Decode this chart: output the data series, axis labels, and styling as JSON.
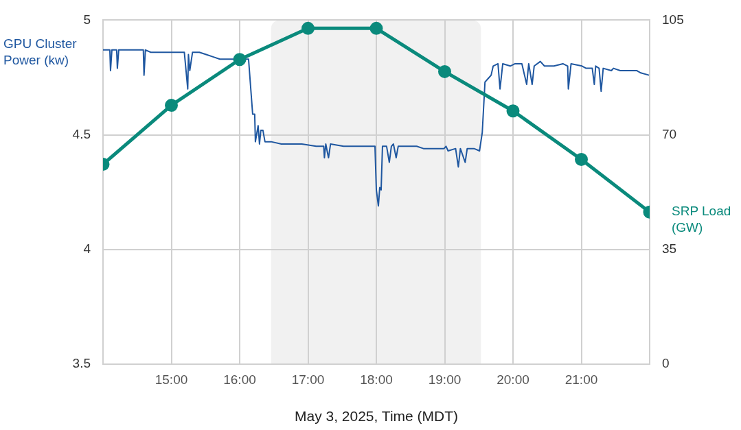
{
  "chart_data": {
    "type": "line",
    "xlabel": "May 3, 2025, Time (MDT)",
    "ylabel": "GPU Cluster Power (kw)",
    "y2label": "SRP Load (GW)",
    "xlim": [
      14,
      22
    ],
    "xticks": [
      {
        "value": 15,
        "label": "15:00"
      },
      {
        "value": 16,
        "label": "16:00"
      },
      {
        "value": 17,
        "label": "17:00"
      },
      {
        "value": 18,
        "label": "18:00"
      },
      {
        "value": 19,
        "label": "19:00"
      },
      {
        "value": 20,
        "label": "20:00"
      },
      {
        "value": 21,
        "label": "21:00"
      }
    ],
    "ylim": [
      3.5,
      5
    ],
    "yticks": [
      3.5,
      4,
      4.5,
      5
    ],
    "y2lim": [
      0,
      105
    ],
    "y2ticks": [
      0,
      35,
      70,
      105
    ],
    "grid": true,
    "bands": [
      {
        "axis": "x",
        "from": 16.46,
        "to": 19.53,
        "color": "#f1f1f1"
      }
    ],
    "series": [
      {
        "color": "#1f57a0",
        "marker": "none",
        "x": [
          14.0,
          14.05,
          14.1,
          14.11,
          14.13,
          14.2,
          14.21,
          14.23,
          14.26,
          14.4,
          14.5,
          14.59,
          14.6,
          14.62,
          14.7,
          14.76,
          14.9,
          14.95,
          15.01,
          15.06,
          15.16,
          15.19,
          15.24,
          15.25,
          15.27,
          15.31,
          15.41,
          15.51,
          15.61,
          15.71,
          15.91,
          16.13,
          16.19,
          16.22,
          16.23,
          16.27,
          16.29,
          16.31,
          16.34,
          16.37,
          16.46,
          16.61,
          16.71,
          16.91,
          17.12,
          17.23,
          17.24,
          17.26,
          17.3,
          17.33,
          17.52,
          17.92,
          17.98,
          18.0,
          18.03,
          18.05,
          18.07,
          18.09,
          18.12,
          18.15,
          18.19,
          18.22,
          18.25,
          18.29,
          18.32,
          18.59,
          18.69,
          18.82,
          18.99,
          19.02,
          19.05,
          19.16,
          19.2,
          19.23,
          19.3,
          19.33,
          19.43,
          19.51,
          19.55,
          19.59,
          19.65,
          19.68,
          19.71,
          19.78,
          19.81,
          19.85,
          19.96,
          20.03,
          20.13,
          20.2,
          20.23,
          20.28,
          20.31,
          20.4,
          20.46,
          20.6,
          20.73,
          20.8,
          20.81,
          20.85,
          21.01,
          21.07,
          21.16,
          21.19,
          21.21,
          21.26,
          21.29,
          21.32,
          21.44,
          21.47,
          21.57,
          21.67,
          21.81,
          21.87,
          21.99
        ],
        "values": [
          4.87,
          4.87,
          4.87,
          4.78,
          4.87,
          4.87,
          4.79,
          4.87,
          4.87,
          4.87,
          4.87,
          4.87,
          4.76,
          4.87,
          4.86,
          4.86,
          4.86,
          4.86,
          4.86,
          4.86,
          4.86,
          4.86,
          4.7,
          4.85,
          4.78,
          4.86,
          4.86,
          4.85,
          4.84,
          4.83,
          4.83,
          4.83,
          4.59,
          4.59,
          4.47,
          4.54,
          4.46,
          4.52,
          4.52,
          4.47,
          4.47,
          4.46,
          4.46,
          4.46,
          4.45,
          4.45,
          4.4,
          4.46,
          4.4,
          4.46,
          4.45,
          4.45,
          4.45,
          4.26,
          4.19,
          4.27,
          4.26,
          4.45,
          4.45,
          4.45,
          4.38,
          4.45,
          4.46,
          4.4,
          4.45,
          4.45,
          4.44,
          4.44,
          4.44,
          4.45,
          4.43,
          4.44,
          4.36,
          4.44,
          4.38,
          4.44,
          4.44,
          4.43,
          4.51,
          4.73,
          4.75,
          4.76,
          4.8,
          4.81,
          4.7,
          4.81,
          4.8,
          4.81,
          4.81,
          4.72,
          4.81,
          4.72,
          4.8,
          4.82,
          4.8,
          4.8,
          4.81,
          4.8,
          4.7,
          4.81,
          4.8,
          4.79,
          4.79,
          4.72,
          4.8,
          4.79,
          4.69,
          4.79,
          4.78,
          4.79,
          4.78,
          4.78,
          4.78,
          4.77,
          4.76
        ]
      },
      {
        "color": "#0a8a7c",
        "marker": "circle",
        "axis": "y2",
        "x": [
          14,
          15,
          16,
          17,
          18,
          19,
          20,
          21,
          22
        ],
        "values": [
          61,
          79,
          93,
          102.5,
          102.5,
          89.3,
          77.3,
          62.5,
          46.4
        ]
      }
    ]
  }
}
